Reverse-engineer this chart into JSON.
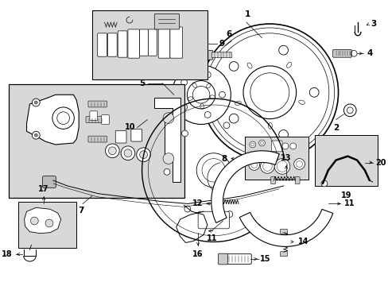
{
  "bg_color": "#ffffff",
  "line_color": "#000000",
  "gray_fill": "#d8d8d8",
  "fig_width": 4.89,
  "fig_height": 3.6,
  "dpi": 100
}
